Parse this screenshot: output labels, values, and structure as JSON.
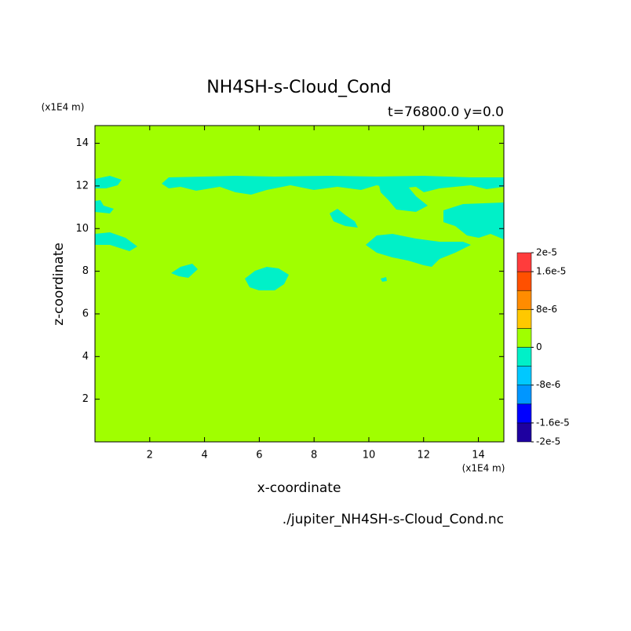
{
  "chart_data": {
    "type": "contour",
    "title": "NH4SH-s-Cloud_Cond",
    "subtitle": "t=76800.0 y=0.0",
    "x_label": "x-coordinate",
    "y_label": "z-coordinate",
    "x_unit": "(x1E4 m)",
    "y_unit": "(x1E4 m)",
    "footer": "./jupiter_NH4SH-s-Cloud_Cond.nc",
    "xlim": [
      0,
      14.93
    ],
    "xticks": [
      2,
      4,
      6,
      8,
      10,
      12,
      14
    ],
    "ylim": [
      0,
      14.83
    ],
    "yticks": [
      2,
      4,
      6,
      8,
      10,
      12,
      14
    ],
    "levels": [
      -2e-05,
      -1.6e-05,
      -1.2e-05,
      -8e-06,
      -4e-06,
      0,
      4e-06,
      8e-06,
      1.2e-05,
      1.6e-05,
      2e-05
    ],
    "colors": [
      "#1e00a0",
      "#0000ff",
      "#0096ff",
      "#00c8ff",
      "#00f0c8",
      "#a0ff00",
      "#ffc800",
      "#ff8c00",
      "#ff5000",
      "#ff3c3c"
    ],
    "background_level": 5,
    "region_level": 4,
    "colorbar_ticks": [
      {
        "value": 2e-05,
        "label": "2e-5"
      },
      {
        "value": 1.6e-05,
        "label": "1.6e-5"
      },
      {
        "value": 8e-06,
        "label": "8e-6"
      },
      0,
      {
        "value": -8e-06,
        "label": "-8e-6"
      },
      {
        "value": -1.6e-05,
        "label": "-1.6e-5"
      },
      {
        "value": -2e-05,
        "label": "-2e-5"
      }
    ]
  }
}
